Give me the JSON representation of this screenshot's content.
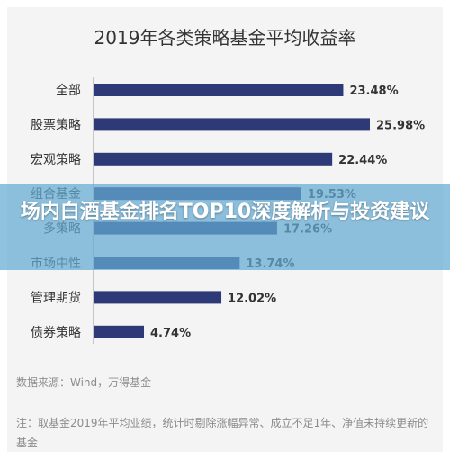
{
  "chart_data": {
    "type": "bar",
    "orientation": "horizontal",
    "title": "2019年各类策略基金平均收益率",
    "categories": [
      "全部",
      "股票策略",
      "宏观策略",
      "组合基金",
      "多策略",
      "市场中性",
      "管理期货",
      "债券策略"
    ],
    "values": [
      23.48,
      25.98,
      22.44,
      19.53,
      17.26,
      13.74,
      12.02,
      4.74
    ],
    "value_labels": [
      "23.48%",
      "25.98%",
      "22.44%",
      "19.53%",
      "17.26%",
      "13.74%",
      "12.02%",
      "4.74%"
    ],
    "bar_color": "#2e3a78",
    "xlim": [
      0,
      26
    ],
    "grid": false,
    "legend": "none"
  },
  "source": "数据来源：Wind，万得基金",
  "note": "注：取基金2019年平均业绩，统计时剔除涨幅异常、成立不足1年、净值未持续更新的基金",
  "overlay": {
    "headline": "场内白酒基金排名TOP10深度解析与投资建议",
    "background_color": "#64aad2"
  }
}
